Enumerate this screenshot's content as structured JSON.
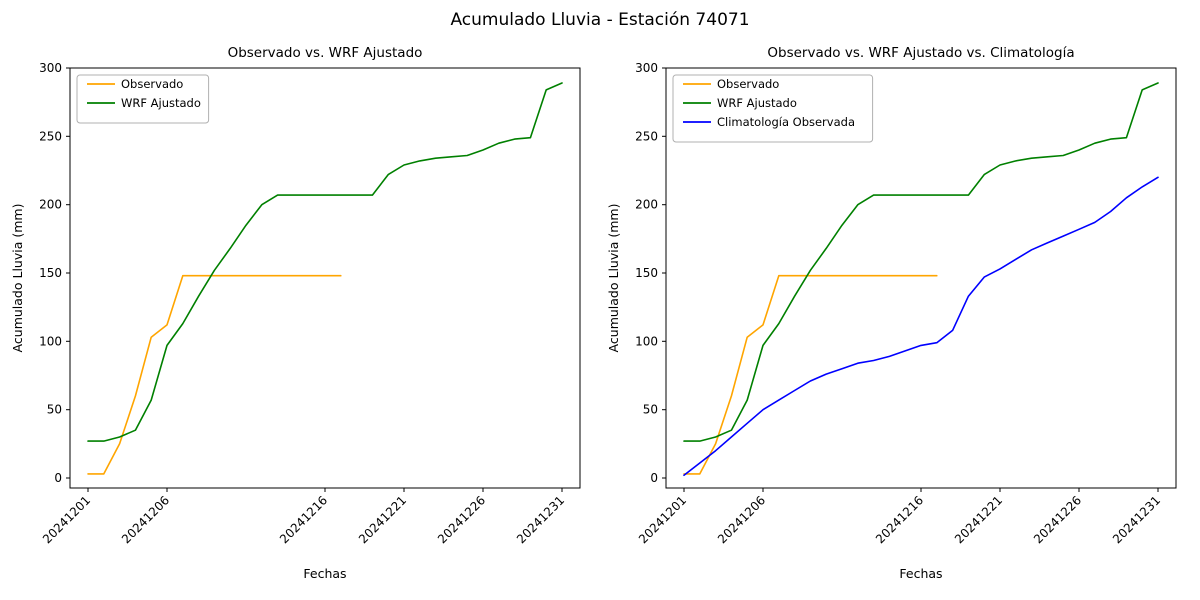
{
  "title": "Acumulado Lluvia - Estación 74071",
  "background": "#ffffff",
  "axis_color": "#000000",
  "chart_data": [
    {
      "type": "line",
      "title": "Observado vs. WRF Ajustado",
      "xlabel": "Fechas",
      "ylabel": "Acumulado Lluvia (mm)",
      "ylim": [
        0,
        300
      ],
      "yticks": [
        0,
        50,
        100,
        150,
        200,
        250,
        300
      ],
      "x_range": [
        1,
        31
      ],
      "xticks": [
        {
          "day": 1,
          "label": "20241201"
        },
        {
          "day": 6,
          "label": "20241206"
        },
        {
          "day": 16,
          "label": "20241216"
        },
        {
          "day": 21,
          "label": "20241221"
        },
        {
          "day": 26,
          "label": "20241226"
        },
        {
          "day": 31,
          "label": "20241231"
        }
      ],
      "legend_position": "upper left",
      "grid": false,
      "series": [
        {
          "name": "Observado",
          "color": "#ffa500",
          "start_day": 1,
          "values": [
            3,
            3,
            25,
            60,
            103,
            112,
            148,
            148,
            148,
            148,
            148,
            148,
            148,
            148,
            148,
            148,
            148
          ]
        },
        {
          "name": "WRF Ajustado",
          "color": "#008000",
          "start_day": 1,
          "values": [
            27,
            27,
            30,
            35,
            57,
            97,
            113,
            133,
            152,
            168,
            185,
            200,
            207,
            207,
            207,
            207,
            207,
            207,
            207,
            222,
            229,
            232,
            234,
            235,
            236,
            240,
            245,
            248,
            249,
            284,
            289
          ]
        }
      ]
    },
    {
      "type": "line",
      "title": "Observado vs. WRF Ajustado vs. Climatología",
      "xlabel": "Fechas",
      "ylabel": "Acumulado Lluvia (mm)",
      "ylim": [
        0,
        300
      ],
      "yticks": [
        0,
        50,
        100,
        150,
        200,
        250,
        300
      ],
      "x_range": [
        1,
        31
      ],
      "xticks": [
        {
          "day": 1,
          "label": "20241201"
        },
        {
          "day": 6,
          "label": "20241206"
        },
        {
          "day": 16,
          "label": "20241216"
        },
        {
          "day": 21,
          "label": "20241221"
        },
        {
          "day": 26,
          "label": "20241226"
        },
        {
          "day": 31,
          "label": "20241231"
        }
      ],
      "legend_position": "upper left",
      "grid": false,
      "series": [
        {
          "name": "Observado",
          "color": "#ffa500",
          "start_day": 1,
          "values": [
            3,
            3,
            25,
            60,
            103,
            112,
            148,
            148,
            148,
            148,
            148,
            148,
            148,
            148,
            148,
            148,
            148
          ]
        },
        {
          "name": "WRF Ajustado",
          "color": "#008000",
          "start_day": 1,
          "values": [
            27,
            27,
            30,
            35,
            57,
            97,
            113,
            133,
            152,
            168,
            185,
            200,
            207,
            207,
            207,
            207,
            207,
            207,
            207,
            222,
            229,
            232,
            234,
            235,
            236,
            240,
            245,
            248,
            249,
            284,
            289
          ]
        },
        {
          "name": "Climatología Observada",
          "color": "#0000ff",
          "start_day": 1,
          "values": [
            2,
            11,
            20,
            30,
            40,
            50,
            57,
            64,
            71,
            76,
            80,
            84,
            86,
            89,
            93,
            97,
            99,
            108,
            133,
            147,
            153,
            160,
            167,
            172,
            177,
            182,
            187,
            195,
            205,
            213,
            220
          ]
        }
      ]
    }
  ]
}
